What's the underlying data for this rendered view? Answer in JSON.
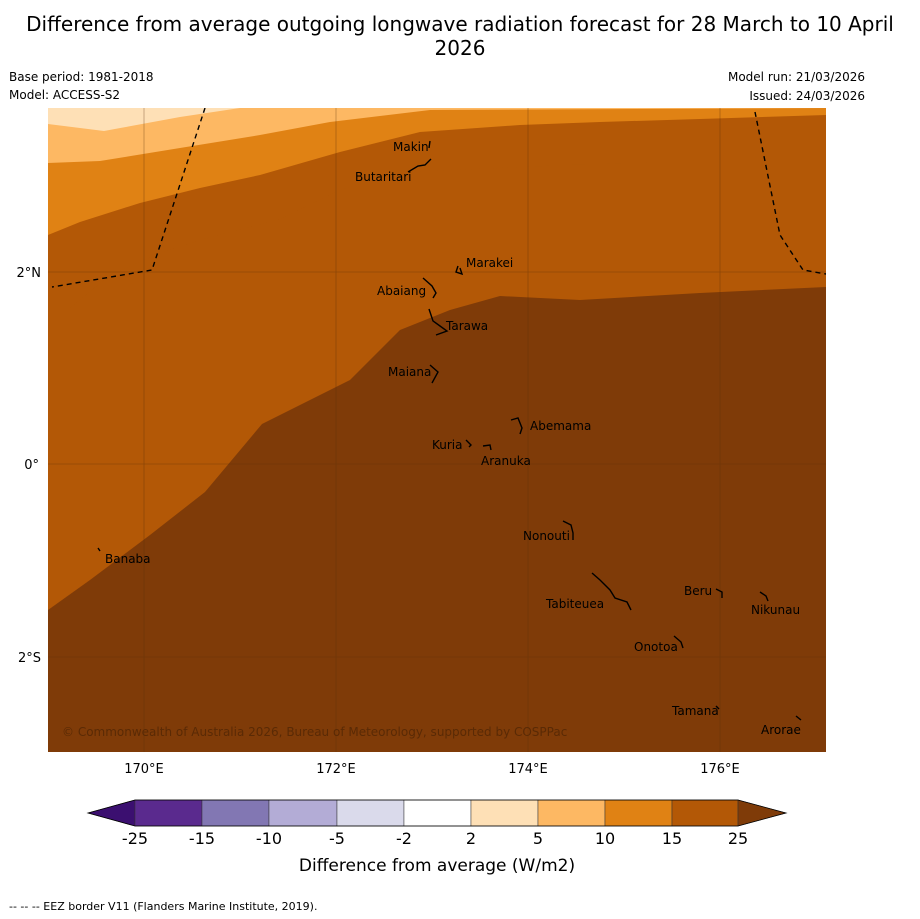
{
  "title": "Difference from average outgoing longwave radiation forecast for 28 March to 10 April 2026",
  "base_period": "Base period: 1981-2018",
  "model": "Model: ACCESS-S2",
  "model_run": "Model run: 21/03/2026",
  "issued": "Issued: 24/03/2026",
  "copyright": "© Commonwealth of Australia 2026, Bureau of Meteorology, supported by COSPPac",
  "footer": "-- -- -- EEZ border V11 (Flanders Marine Institute, 2019).",
  "axes": {
    "lon_labels": [
      "170°E",
      "172°E",
      "174°E",
      "176°E"
    ],
    "lat_labels": [
      "2°N",
      "0°",
      "2°S"
    ]
  },
  "places": [
    {
      "name": "Makin"
    },
    {
      "name": "Butaritari"
    },
    {
      "name": "Marakei"
    },
    {
      "name": "Abaiang"
    },
    {
      "name": "Tarawa"
    },
    {
      "name": "Maiana"
    },
    {
      "name": "Abemama"
    },
    {
      "name": "Kuria"
    },
    {
      "name": "Aranuka"
    },
    {
      "name": "Nonouti"
    },
    {
      "name": "Banaba"
    },
    {
      "name": "Beru"
    },
    {
      "name": "Nikunau"
    },
    {
      "name": "Tabiteuea"
    },
    {
      "name": "Onotoa"
    },
    {
      "name": "Tamana"
    },
    {
      "name": "Arorae"
    }
  ],
  "colorbar": {
    "title": "Difference from average (W/m2)",
    "ticks": [
      "-25",
      "-15",
      "-10",
      "-5",
      "-2",
      "2",
      "5",
      "10",
      "15",
      "25"
    ],
    "colors": [
      "#3b0f70",
      "#5a2a8e",
      "#8277b3",
      "#b3acd6",
      "#dadaeb",
      "#ffffff",
      "#fee0b6",
      "#fdb863",
      "#e08214",
      "#b35806",
      "#7f3b08"
    ]
  },
  "colors": {
    "level_0_5": "#fee0b6",
    "level_5_10": "#fdb863",
    "level_10_15": "#e08214",
    "level_15_25": "#b35806",
    "level_25_plus": "#7f3b08"
  }
}
